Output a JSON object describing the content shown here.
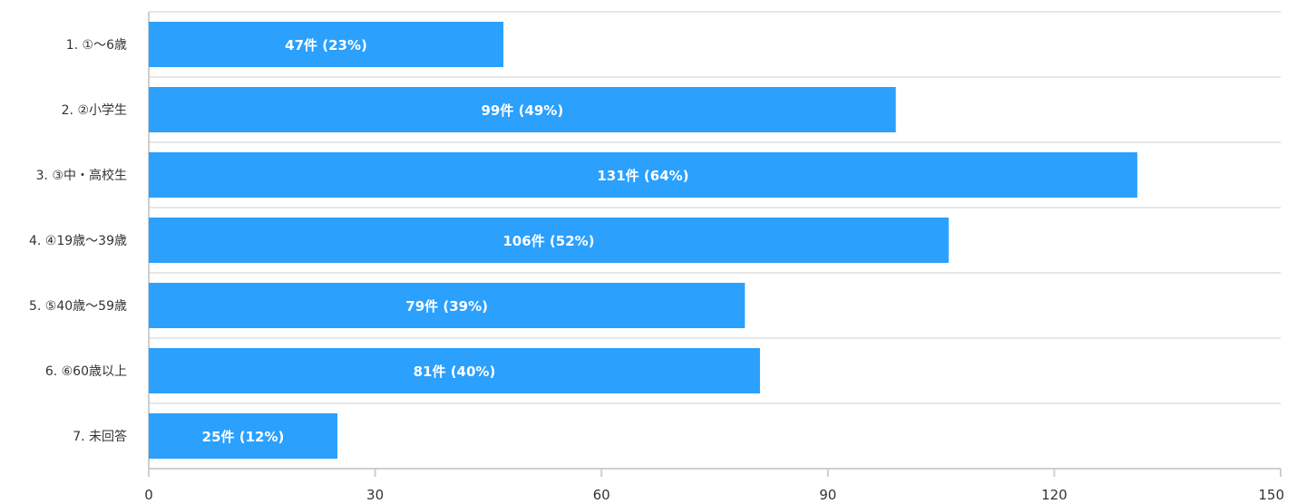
{
  "colors": {
    "bar": "#2ba0fd",
    "grid": "#e6e6e6",
    "text": "#333333"
  },
  "chart_data": {
    "type": "bar",
    "orientation": "horizontal",
    "title": "",
    "xlabel": "",
    "ylabel": "",
    "categories": [
      "1. ①～6歳",
      "2. ②小学生",
      "3. ③中・高校生",
      "4. ④19歳～39歳",
      "5. ⑤40歳～59歳",
      "6. ⑥60歳以上",
      "7. 未回答"
    ],
    "values": [
      47,
      99,
      131,
      106,
      79,
      81,
      25
    ],
    "data_labels": [
      "47件 (23%)",
      "99件 (49%)",
      "131件 (64%)",
      "106件 (52%)",
      "79件 (39%)",
      "81件 (40%)",
      "25件 (12%)"
    ],
    "xlim": [
      0,
      150
    ],
    "xticks": [
      0,
      30,
      60,
      90,
      120,
      150
    ],
    "grid": true,
    "legend": "none"
  }
}
